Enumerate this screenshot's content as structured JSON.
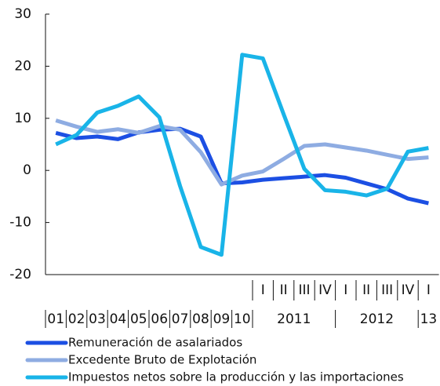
{
  "chart_data": {
    "type": "line",
    "categories": [
      "01",
      "02",
      "03",
      "04",
      "05",
      "06",
      "07",
      "08",
      "09",
      "10",
      "I",
      "II",
      "III",
      "IV",
      "I",
      "II",
      "III",
      "IV",
      "I"
    ],
    "groups": [
      {
        "label": "2011",
        "size": 4
      },
      {
        "label": "2012",
        "size": 4
      },
      {
        "label": "13",
        "size": 1
      }
    ],
    "series": [
      {
        "name": "Remuneración de asalariados",
        "color": "#1c4fe3",
        "values": [
          7.2,
          6.2,
          6.5,
          6.0,
          7.3,
          7.8,
          8.0,
          6.5,
          -2.5,
          -2.3,
          -1.8,
          -1.5,
          -1.2,
          -0.9,
          -1.4,
          -2.5,
          -3.6,
          -5.4,
          -6.3
        ]
      },
      {
        "name": "Excedente Bruto de Explotación",
        "color": "#8eace2",
        "values": [
          9.6,
          8.4,
          7.4,
          7.9,
          7.2,
          8.5,
          7.8,
          3.5,
          -2.7,
          -1.0,
          -0.2,
          2.2,
          4.7,
          5.0,
          4.4,
          3.8,
          3.0,
          2.2,
          2.5
        ]
      },
      {
        "name": "Impuestos netos sobre la producción y las importaciones",
        "color": "#19b4e8",
        "values": [
          5.0,
          6.8,
          11.1,
          12.4,
          14.2,
          10.2,
          -3.0,
          -14.7,
          -16.2,
          22.2,
          21.5,
          10.8,
          0.3,
          -3.8,
          -4.1,
          -4.8,
          -3.5,
          3.6,
          4.3
        ]
      }
    ],
    "ylim": [
      -20,
      30
    ],
    "yticks": [
      -20,
      -10,
      0,
      10,
      20,
      30
    ]
  }
}
